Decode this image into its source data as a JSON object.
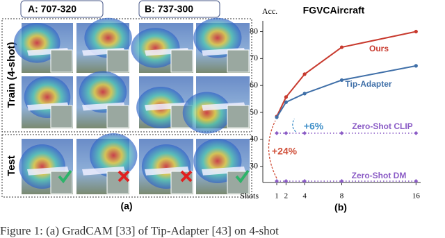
{
  "panel_a": {
    "headers": [
      "A: 707-320",
      "B: 737-300"
    ],
    "row_labels": [
      "Train (4-shot)",
      "Test"
    ],
    "caption": "(a)"
  },
  "chart_data": {
    "type": "line",
    "title": "FGVCAircraft",
    "y_label": "Acc.",
    "x_label": "Shots",
    "x": [
      1,
      2,
      4,
      8,
      16
    ],
    "xlim": [
      -0.5,
      16.5
    ],
    "xticks": [
      1,
      2,
      4,
      8,
      16
    ],
    "ylim": [
      24,
      84
    ],
    "yticks": [
      30,
      40,
      50,
      60,
      70,
      80
    ],
    "series": [
      {
        "name": "Ours",
        "color": "#c83a2e",
        "style": "solid",
        "values": [
          48.5,
          55.7,
          64.2,
          74.2,
          80
        ]
      },
      {
        "name": "Tip-Adapter",
        "color": "#3f6fa8",
        "style": "solid",
        "values": [
          48.2,
          53.8,
          57,
          62,
          67.3
        ]
      },
      {
        "name": "Zero-Shot CLIP",
        "color": "#8b5cc6",
        "style": "dotted",
        "values": [
          42.3,
          42.3,
          42.3,
          42.3,
          42.3
        ]
      },
      {
        "name": "Zero-Shot DM",
        "color": "#8b5cc6",
        "style": "dotted",
        "values": [
          24.5,
          24.5,
          24.5,
          24.5,
          24.5
        ]
      }
    ],
    "annotations": [
      {
        "text": "+6%",
        "color": "#3f8fc8"
      },
      {
        "text": "+24%",
        "color": "#d0503a"
      }
    ],
    "caption": "(b)"
  },
  "caption": "Figure 1: (a) GradCAM [33] of Tip-Adapter [43] on 4-shot"
}
